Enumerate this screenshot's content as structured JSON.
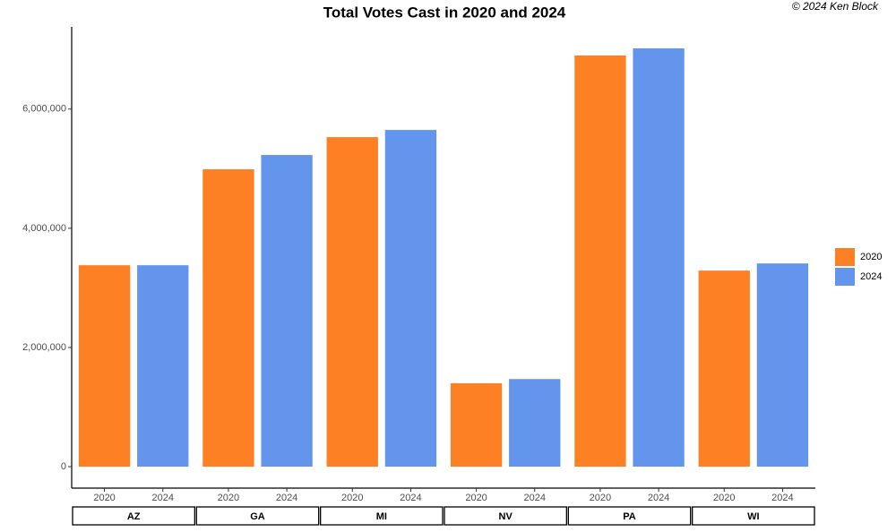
{
  "chart_data": {
    "type": "bar",
    "title": "Total Votes Cast in 2020 and 2024",
    "annotation": "© 2024 Ken Block",
    "categories": [
      "AZ",
      "GA",
      "MI",
      "NV",
      "PA",
      "WI"
    ],
    "series": [
      {
        "name": "2020",
        "color": "#fe8024",
        "values": [
          3380000,
          4990000,
          5530000,
          1400000,
          6900000,
          3290000
        ]
      },
      {
        "name": "2024",
        "color": "#6495ed",
        "values": [
          3380000,
          5230000,
          5650000,
          1470000,
          7020000,
          3410000
        ]
      }
    ],
    "ylim": [
      -360000,
      7380000
    ],
    "yticks": [
      0,
      {
        "value": 2000000,
        "label": "2,000,000"
      },
      {
        "value": 4000000,
        "label": "4,000,000"
      },
      {
        "value": 6000000,
        "label": "6,000,000"
      }
    ],
    "grid": false,
    "legend": "right"
  }
}
